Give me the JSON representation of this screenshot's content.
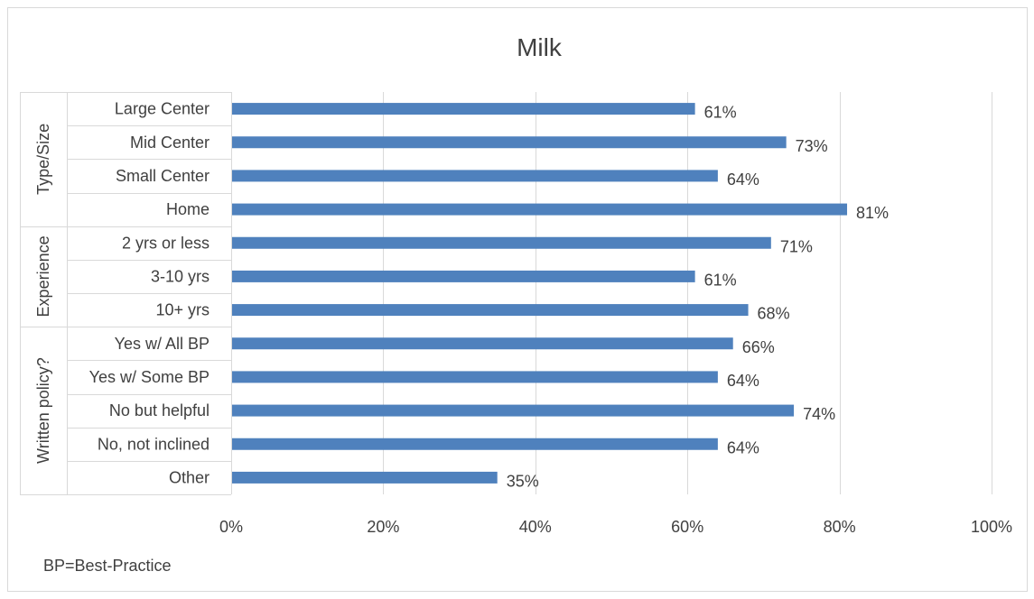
{
  "chart_data": {
    "type": "bar",
    "orientation": "horizontal",
    "title": "Milk",
    "groups": [
      {
        "name": "Type/Size",
        "categories": [
          "Large Center",
          "Mid Center",
          "Small Center",
          "Home"
        ]
      },
      {
        "name": "Experience",
        "categories": [
          "2 yrs or less",
          "3-10 yrs",
          "10+ yrs"
        ]
      },
      {
        "name": "Written policy?",
        "categories": [
          "Yes w/ All BP",
          "Yes w/ Some BP",
          "No but helpful",
          "No, not inclined",
          "Other"
        ]
      }
    ],
    "categories": [
      "Large Center",
      "Mid Center",
      "Small Center",
      "Home",
      "2 yrs or less",
      "3-10 yrs",
      "10+ yrs",
      "Yes w/ All BP",
      "Yes w/ Some BP",
      "No but helpful",
      "No, not inclined",
      "Other"
    ],
    "values": [
      61,
      73,
      64,
      81,
      71,
      61,
      68,
      66,
      64,
      74,
      64,
      35
    ],
    "data_labels": [
      "61%",
      "73%",
      "64%",
      "81%",
      "71%",
      "61%",
      "68%",
      "66%",
      "64%",
      "74%",
      "64%",
      "35%"
    ],
    "xlim": [
      0,
      100
    ],
    "xticks": [
      0,
      20,
      40,
      60,
      80,
      100
    ],
    "xtick_labels": [
      "0%",
      "20%",
      "40%",
      "60%",
      "80%",
      "100%"
    ],
    "xlabel": "",
    "ylabel": "",
    "grid": "vertical",
    "legend": "none",
    "note": "BP=Best-Practice",
    "bar_color": "#4f81bd",
    "grid_color": "#d9d9d9",
    "text_color": "#404040"
  }
}
